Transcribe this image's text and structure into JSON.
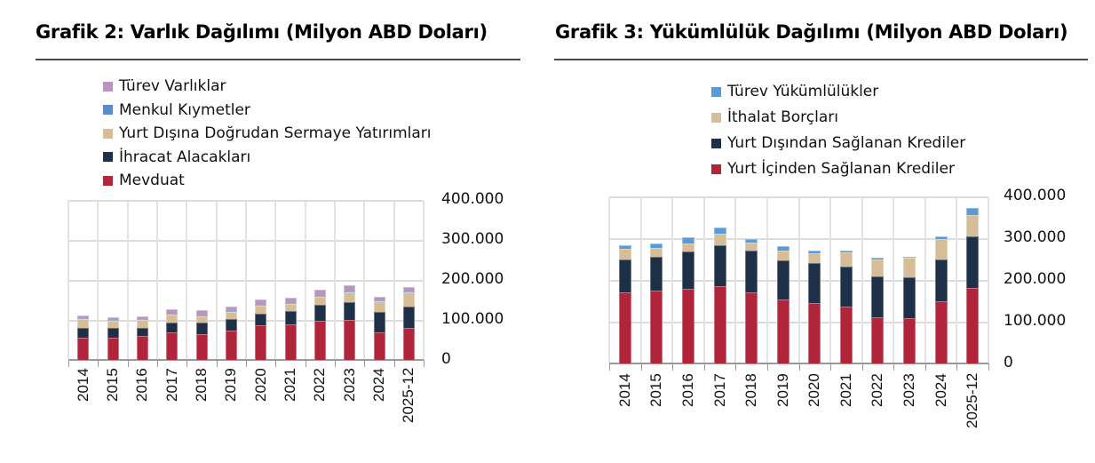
{
  "chart_data": [
    {
      "type": "bar",
      "stacked": true,
      "title": "Grafik 2: Varlık Dağılımı (Milyon ABD Doları)",
      "xlabel": "",
      "ylabel": "",
      "ylim": [
        0,
        400000
      ],
      "yticks": [
        "0",
        "100.000",
        "200.000",
        "300.000",
        "400.000"
      ],
      "grid": true,
      "legend_position": "top",
      "categories": [
        "2014",
        "2015",
        "2016",
        "2017",
        "2018",
        "2019",
        "2020",
        "2021",
        "2022",
        "2023",
        "2024",
        "2025-12"
      ],
      "series": [
        {
          "name": "Mevduat",
          "color": "#b0253a",
          "values": [
            55000,
            56000,
            59000,
            69000,
            65000,
            73000,
            86000,
            90000,
            97000,
            100000,
            70000,
            79000
          ]
        },
        {
          "name": "İhracat Alacakları",
          "color": "#1d3047",
          "values": [
            26000,
            25000,
            22000,
            25000,
            29000,
            29000,
            30000,
            33000,
            41000,
            44000,
            49000,
            55000
          ]
        },
        {
          "name": "Yurt Dışına Doğrudan Sermaye Yatırımları",
          "color": "#d5bd98",
          "values": [
            21000,
            17000,
            19000,
            20000,
            16000,
            18000,
            19000,
            18000,
            20000,
            26000,
            28000,
            36000
          ]
        },
        {
          "name": "Menkul Kıymetler",
          "color": "#5b8ac9",
          "values": [
            500,
            500,
            500,
            500,
            500,
            500,
            1000,
            1000,
            1000,
            1000,
            2000,
            2000
          ]
        },
        {
          "name": "Türev Varlıklar",
          "color": "#b795bd",
          "values": [
            7500,
            5500,
            7500,
            11500,
            11500,
            11500,
            13000,
            13000,
            16000,
            14000,
            8000,
            11000
          ]
        }
      ]
    },
    {
      "type": "bar",
      "stacked": true,
      "title": "Grafik 3: Yükümlülük Dağılımı (Milyon ABD Doları)",
      "xlabel": "",
      "ylabel": "",
      "ylim": [
        0,
        400000
      ],
      "yticks": [
        "0",
        "100.000",
        "200.000",
        "300.000",
        "400.000"
      ],
      "grid": true,
      "legend_position": "top",
      "categories": [
        "2014",
        "2015",
        "2016",
        "2017",
        "2018",
        "2019",
        "2020",
        "2021",
        "2022",
        "2023",
        "2024",
        "2025-12"
      ],
      "series": [
        {
          "name": "Yurt İçinden Sağlanan Krediler",
          "color": "#b0253a",
          "values": [
            171000,
            175000,
            179000,
            186000,
            171000,
            154000,
            145000,
            137000,
            111000,
            109000,
            150000,
            180000
          ]
        },
        {
          "name": "Yurt Dışından Sağlanan Krediler",
          "color": "#1d3047",
          "values": [
            77000,
            81000,
            90000,
            97000,
            99000,
            93000,
            95000,
            95000,
            97000,
            97000,
            99000,
            125000
          ]
        },
        {
          "name": "İthalat Borçları",
          "color": "#d5bd98",
          "values": [
            26000,
            21000,
            19000,
            27000,
            20000,
            23000,
            23000,
            33000,
            42000,
            47000,
            49000,
            51000
          ]
        },
        {
          "name": "Türev Yükümlülükler",
          "color": "#5b9bd5",
          "values": [
            8000,
            11000,
            14000,
            16000,
            9000,
            10000,
            8000,
            6000,
            3000,
            2000,
            7000,
            16000
          ]
        }
      ]
    }
  ],
  "left": {
    "title": "Grafik 2: Varlık Dağılımı (Milyon ABD Doları)",
    "legend": [
      {
        "label": "Türev Varlıklar",
        "color": "#b795bd"
      },
      {
        "label": "Menkul Kıymetler",
        "color": "#5b8ac9"
      },
      {
        "label": "Yurt Dışına Doğrudan Sermaye Yatırımları",
        "color": "#d5bd98"
      },
      {
        "label": "İhracat Alacakları",
        "color": "#1d3047"
      },
      {
        "label": "Mevduat",
        "color": "#b0253a"
      }
    ]
  },
  "right": {
    "title": "Grafik 3: Yükümlülük Dağılımı (Milyon ABD Doları)",
    "legend": [
      {
        "label": "Türev Yükümlülükler",
        "color": "#5b9bd5"
      },
      {
        "label": "İthalat Borçları",
        "color": "#d5bd98"
      },
      {
        "label": "Yurt Dışından Sağlanan Krediler",
        "color": "#1d3047"
      },
      {
        "label": "Yurt İçinden Sağlanan Krediler",
        "color": "#b0253a"
      }
    ]
  }
}
